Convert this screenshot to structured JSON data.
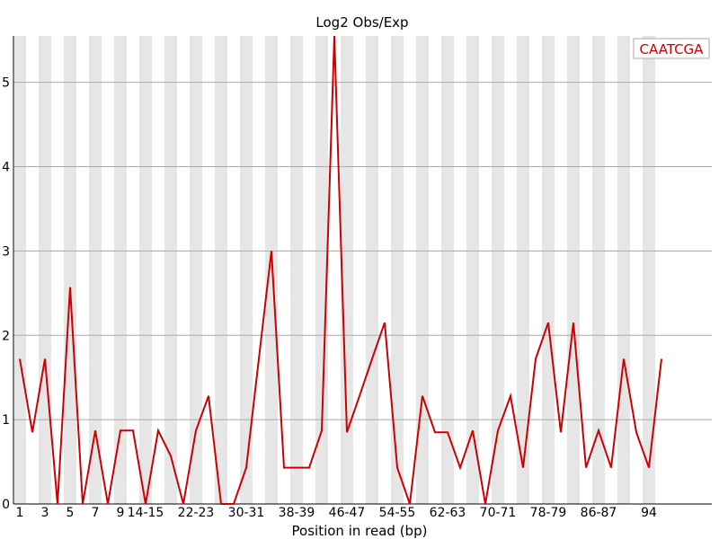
{
  "chart_data": {
    "type": "line",
    "title": "Log2 Obs/Exp",
    "xlabel": "Position in read (bp)",
    "ylabel": "",
    "ylim": [
      0,
      5.55
    ],
    "yticks": [
      0,
      1,
      2,
      3,
      4,
      5
    ],
    "x_tick_labels": [
      "1",
      "3",
      "5",
      "7",
      "9",
      "14-15",
      "22-23",
      "30-31",
      "38-39",
      "46-47",
      "54-55",
      "62-63",
      "70-71",
      "78-79",
      "86-87",
      "94"
    ],
    "x_tick_category_index": [
      0,
      2,
      4,
      6,
      8,
      10,
      14,
      18,
      22,
      26,
      30,
      34,
      38,
      42,
      46,
      50
    ],
    "category_count": 52,
    "grid": true,
    "legend_position": "top-right",
    "colors": {
      "line": "#cc0000",
      "band": "#e6e6e6",
      "gridline": "#aaaaaa",
      "axis": "#000000"
    },
    "series": [
      {
        "name": "CAATCGA",
        "values": [
          1.72,
          0.85,
          1.72,
          0.0,
          2.57,
          0.0,
          0.87,
          0.0,
          0.87,
          0.87,
          0.0,
          0.87,
          0.57,
          0.0,
          0.87,
          1.28,
          0.0,
          0.0,
          0.43,
          1.72,
          3.0,
          0.43,
          0.43,
          0.43,
          0.87,
          5.55,
          0.85,
          1.28,
          1.72,
          2.15,
          0.43,
          0.0,
          1.28,
          0.85,
          0.85,
          0.43,
          0.87,
          0.0,
          0.87,
          1.28,
          0.43,
          1.72,
          2.15,
          0.85,
          2.15,
          0.43,
          0.87,
          0.43,
          1.72,
          0.85,
          0.43,
          1.72
        ]
      }
    ]
  }
}
